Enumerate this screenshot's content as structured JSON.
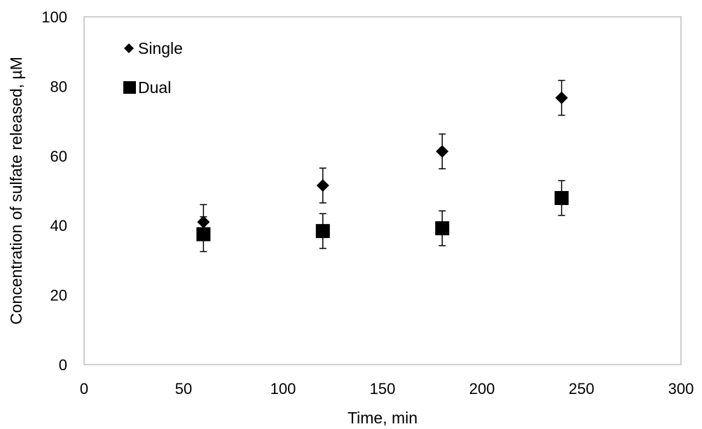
{
  "chart_data": {
    "type": "scatter",
    "title": "",
    "xlabel": "Time, min",
    "ylabel": "Concentration of sulfate released, µM",
    "xlim": [
      0,
      300
    ],
    "ylim": [
      0,
      100
    ],
    "xticks": [
      0,
      50,
      100,
      150,
      200,
      250,
      300
    ],
    "yticks": [
      0,
      20,
      40,
      60,
      80,
      100
    ],
    "grid": false,
    "legend_position": "top-left",
    "series": [
      {
        "name": "Single",
        "marker": "diamond",
        "color": "#000000",
        "x": [
          60,
          120,
          180,
          240
        ],
        "y": [
          41,
          51.5,
          61.3,
          76.7
        ],
        "error": [
          5,
          5,
          5,
          5
        ]
      },
      {
        "name": "Dual",
        "marker": "square",
        "color": "#000000",
        "x": [
          60,
          120,
          180,
          240
        ],
        "y": [
          37.5,
          38.4,
          39.2,
          47.9
        ],
        "error": [
          5,
          5,
          5,
          5
        ]
      }
    ]
  }
}
